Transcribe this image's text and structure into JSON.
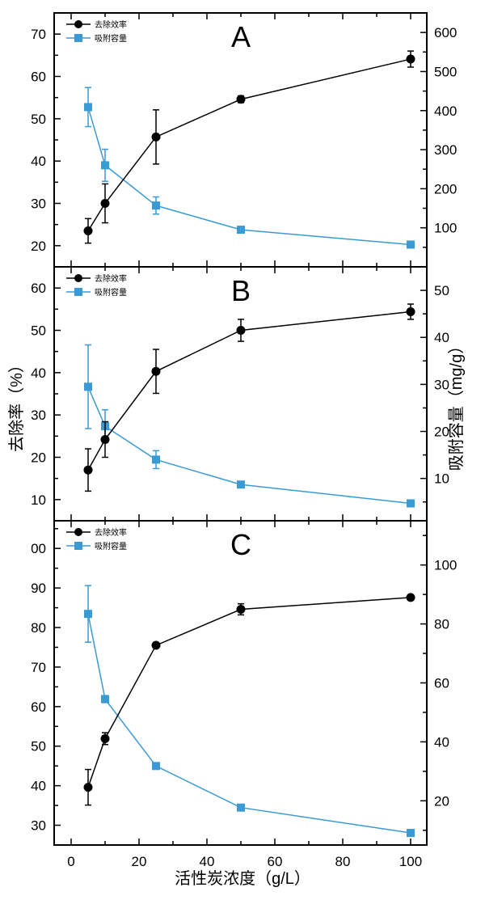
{
  "colors": {
    "removal": "#000000",
    "capacity": "#3a9ad4"
  },
  "shared": {
    "xlabel": "活性炭浓度（g/L）",
    "ylabel_left": "去除率（%）",
    "ylabel_right": "吸附容量（mg/g）",
    "x_ticks": [
      0,
      20,
      40,
      60,
      80,
      100
    ],
    "xlim": [
      -5,
      105
    ]
  },
  "chart_data": [
    {
      "type": "line",
      "panel_label": "A",
      "x": [
        5,
        10,
        25,
        50,
        100
      ],
      "legend_position": "top-left",
      "ylim_left": [
        15,
        75
      ],
      "ylim_right": [
        0,
        650
      ],
      "left_ticks": [
        "20",
        "30",
        "40",
        "50",
        "60",
        "70"
      ],
      "right_ticks": [
        "100",
        "200",
        "300",
        "400",
        "500",
        "600"
      ],
      "series": [
        {
          "name": "去除效率",
          "axis": "left",
          "marker": "circle",
          "values": [
            23.5,
            30.0,
            45.7,
            54.6,
            64.1
          ],
          "errors": [
            2.9,
            4.6,
            6.4,
            0.8,
            1.9
          ]
        },
        {
          "name": "吸附容量",
          "axis": "right",
          "marker": "square",
          "values": [
            409,
            260,
            157,
            95,
            57
          ],
          "errors": [
            50,
            41,
            22,
            0,
            0
          ]
        }
      ]
    },
    {
      "type": "line",
      "panel_label": "B",
      "x": [
        5,
        10,
        25,
        50,
        100
      ],
      "legend_position": "top-left",
      "ylim_left": [
        5,
        65
      ],
      "ylim_right": [
        1,
        55
      ],
      "left_ticks": [
        "10",
        "20",
        "30",
        "40",
        "50",
        "60"
      ],
      "right_ticks": [
        "10",
        "20",
        "30",
        "40",
        "50"
      ],
      "series": [
        {
          "name": "去除效率",
          "axis": "left",
          "marker": "circle",
          "values": [
            17.0,
            24.2,
            40.3,
            50.0,
            54.4
          ],
          "errors": [
            5.0,
            4.2,
            5.2,
            2.6,
            1.8
          ]
        },
        {
          "name": "吸附容量",
          "axis": "right",
          "marker": "square",
          "values": [
            29.5,
            21.1,
            14.0,
            8.7,
            4.7
          ],
          "errors": [
            8.9,
            3.5,
            1.9,
            0,
            0
          ]
        }
      ]
    },
    {
      "type": "line",
      "panel_label": "C",
      "x": [
        5,
        10,
        25,
        50,
        100
      ],
      "legend_position": "top-left",
      "ylim_left": [
        25,
        107
      ],
      "ylim_right": [
        5,
        115
      ],
      "left_ticks": [
        "30",
        "40",
        "50",
        "60",
        "70",
        "80",
        "90",
        "00"
      ],
      "right_ticks": [
        "20",
        "40",
        "60",
        "80",
        "100"
      ],
      "series": [
        {
          "name": "去除效率",
          "axis": "left",
          "marker": "circle",
          "values": [
            39.6,
            51.9,
            75.5,
            84.6,
            87.6
          ],
          "errors": [
            4.5,
            1.5,
            0,
            1.4,
            0
          ]
        },
        {
          "name": "吸附容量",
          "axis": "right",
          "marker": "square",
          "values": [
            83.4,
            54.5,
            31.8,
            17.7,
            9.1
          ],
          "errors": [
            9.6,
            1.2,
            0,
            0,
            0
          ]
        }
      ]
    }
  ]
}
